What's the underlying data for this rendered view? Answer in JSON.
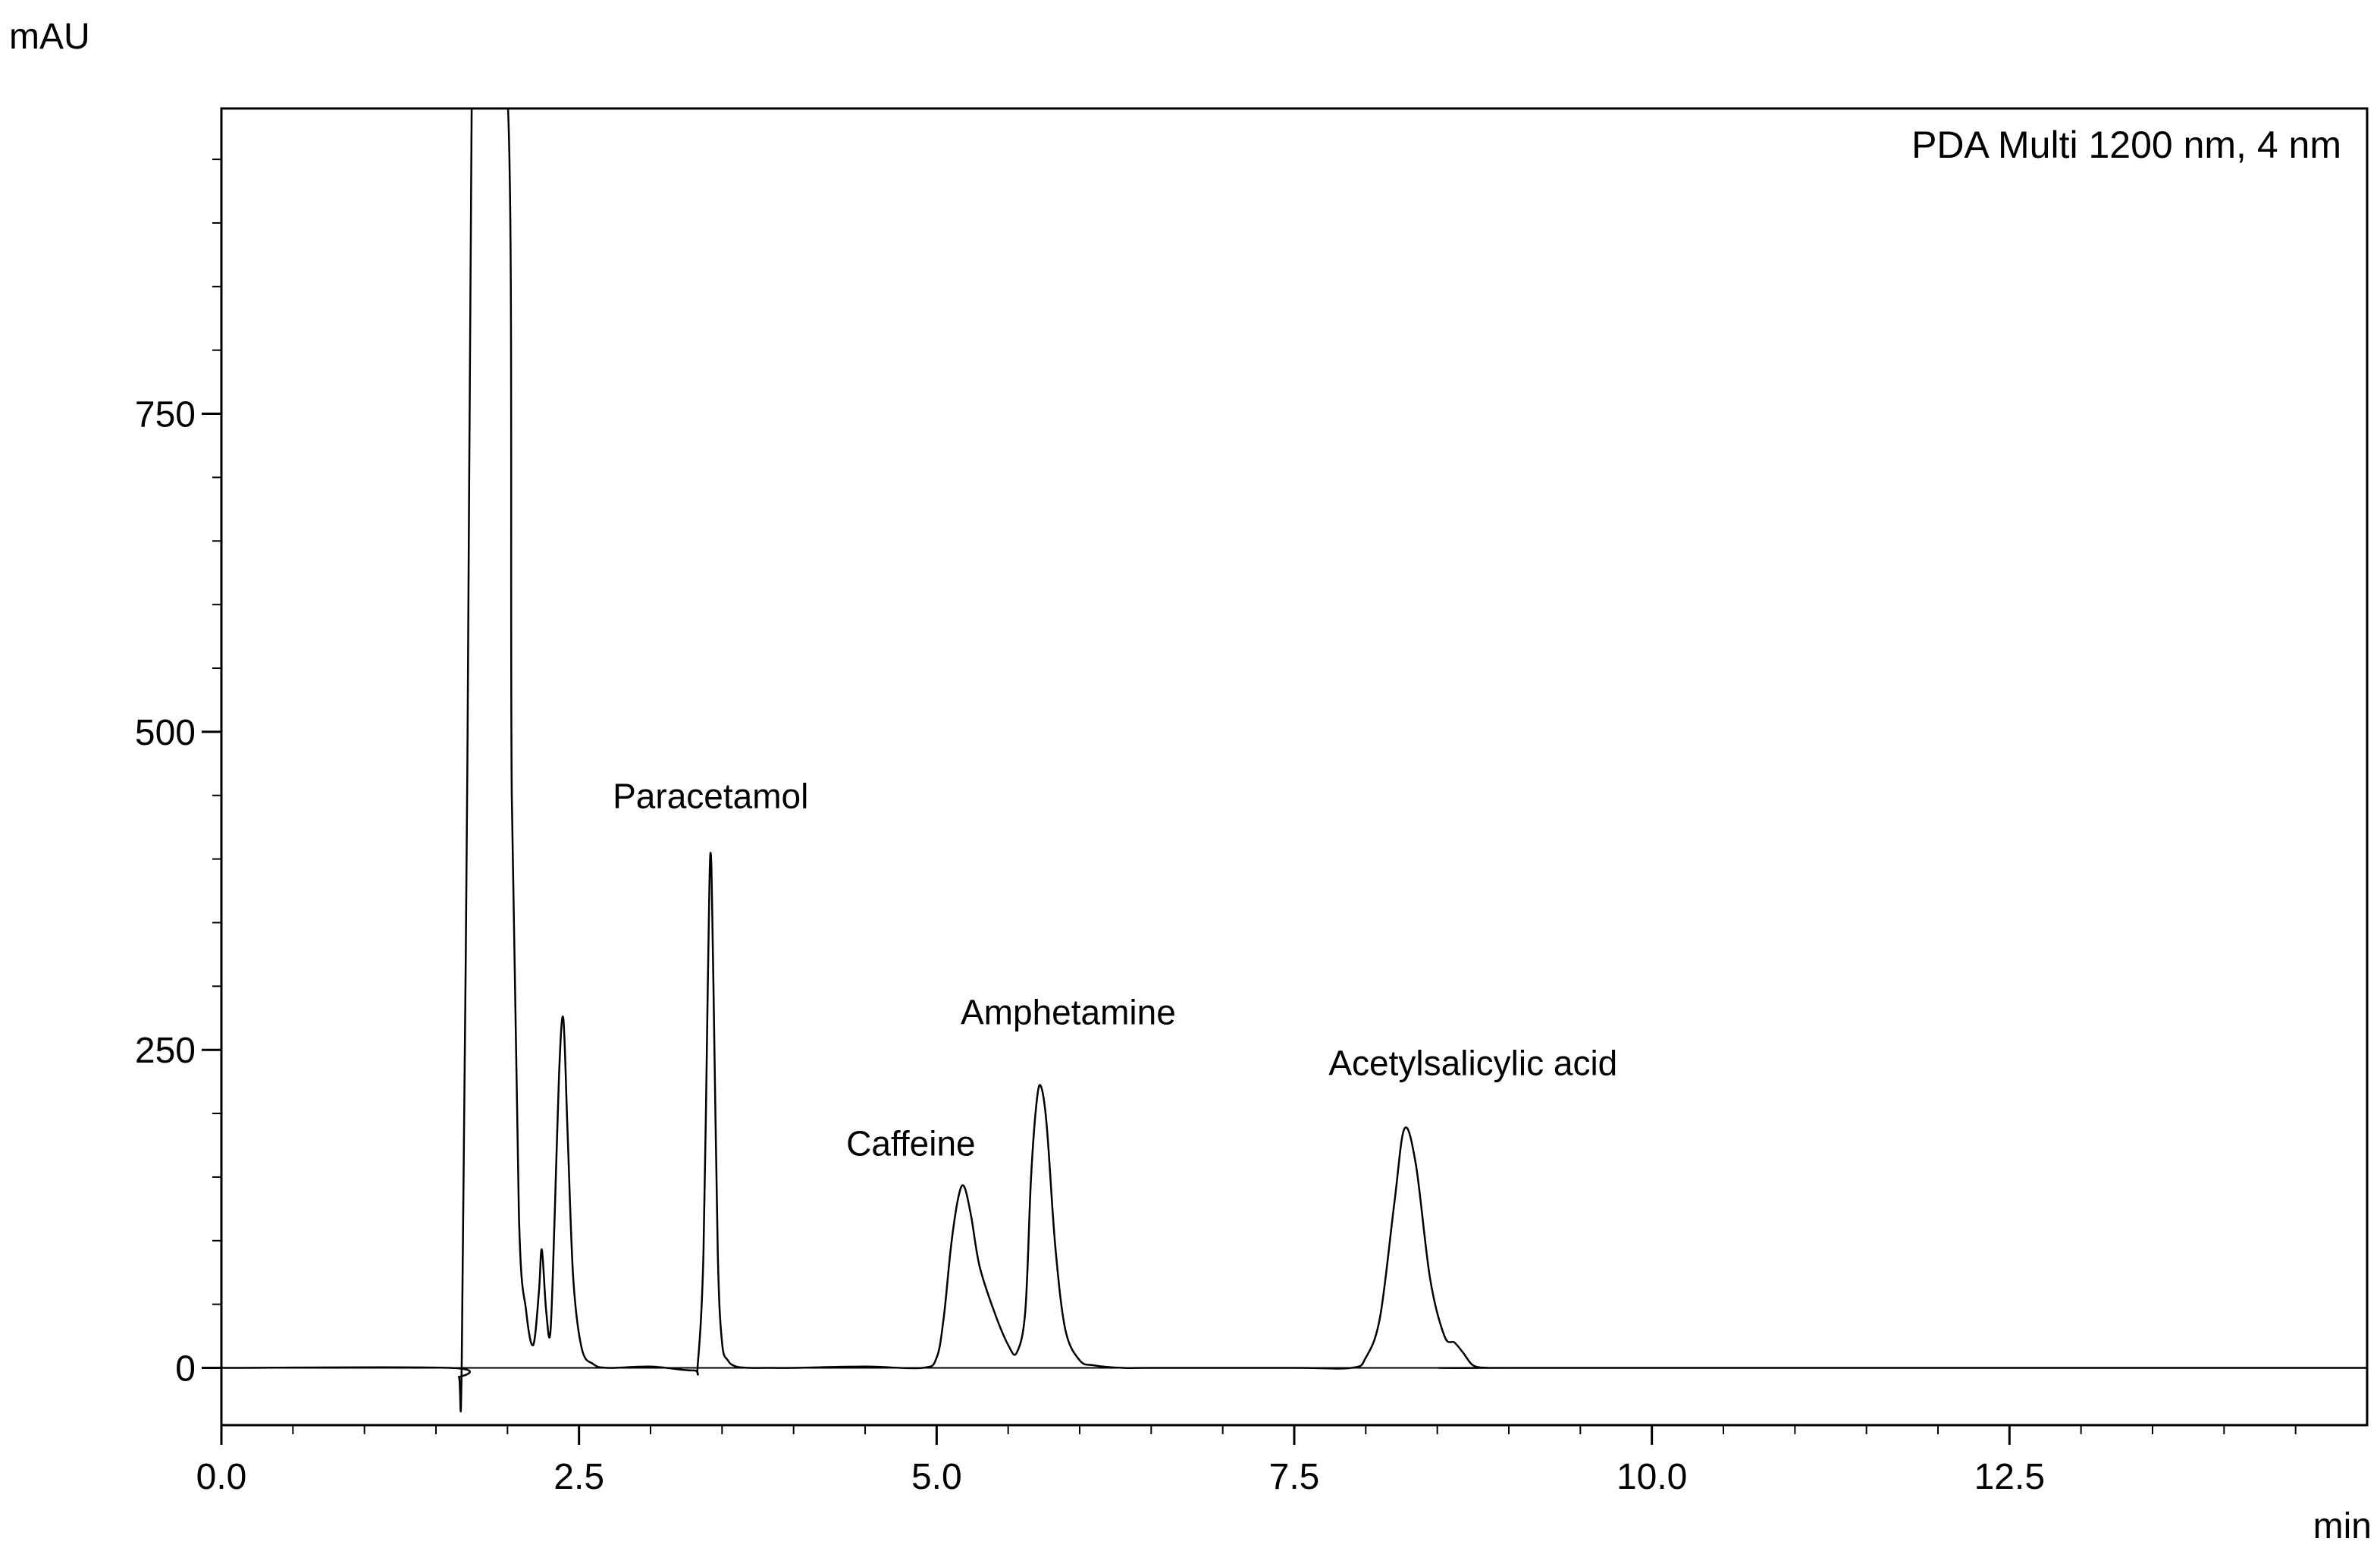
{
  "chart_data": {
    "type": "line",
    "title": "",
    "legend": "PDA Multi 1200 nm, 4 nm",
    "legend_position": "top-right",
    "xlabel": "min",
    "ylabel": "mAU",
    "xlim": [
      0,
      15
    ],
    "ylim": [
      -45,
      990
    ],
    "grid": false,
    "x_ticks": [
      {
        "value": 0.0,
        "label": "0.0"
      },
      {
        "value": 2.5,
        "label": "2.5"
      },
      {
        "value": 5.0,
        "label": "5.0"
      },
      {
        "value": 7.5,
        "label": "7.5"
      },
      {
        "value": 10.0,
        "label": "10.0"
      },
      {
        "value": 12.5,
        "label": "12.5"
      }
    ],
    "y_ticks": [
      {
        "value": 0,
        "label": "0"
      },
      {
        "value": 250,
        "label": "250"
      },
      {
        "value": 500,
        "label": "500"
      },
      {
        "value": 750,
        "label": "750"
      }
    ],
    "annotations": [
      {
        "text": "Paracetamol",
        "x": 3.42,
        "y": 440
      },
      {
        "text": "Caffeine",
        "x": 4.82,
        "y": 167
      },
      {
        "text": "Amphetamine",
        "x": 5.92,
        "y": 270
      },
      {
        "text": "Acetylsalicylic acid",
        "x": 8.75,
        "y": 230
      }
    ],
    "series": [
      {
        "name": "PDA Multi 1200 nm, 4 nm",
        "x": [
          0,
          1.6,
          1.66,
          1.68,
          1.72,
          1.75,
          1.78,
          2.0,
          2.03,
          2.08,
          2.13,
          2.18,
          2.22,
          2.24,
          2.27,
          2.3,
          2.33,
          2.36,
          2.39,
          2.42,
          2.46,
          2.52,
          2.6,
          2.7,
          3.0,
          3.3,
          3.33,
          3.37,
          3.4,
          3.42,
          3.44,
          3.47,
          3.5,
          3.54,
          3.6,
          3.7,
          3.8,
          4.0,
          4.5,
          4.9,
          5.0,
          5.05,
          5.1,
          5.15,
          5.19,
          5.24,
          5.3,
          5.4,
          5.5,
          5.56,
          5.62,
          5.66,
          5.7,
          5.73,
          5.77,
          5.83,
          5.9,
          6.0,
          6.1,
          6.3,
          6.5,
          7.5,
          7.9,
          8.0,
          8.1,
          8.2,
          8.27,
          8.35,
          8.45,
          8.55,
          8.62,
          8.68,
          8.75,
          8.85,
          9.0,
          15.0
        ],
        "y": [
          0,
          0,
          -7,
          5,
          480,
          1000,
          1000,
          1000,
          450,
          120,
          45,
          18,
          60,
          93,
          45,
          28,
          120,
          230,
          275,
          185,
          70,
          15,
          3,
          0,
          1,
          -2,
          3,
          90,
          300,
          405,
          300,
          90,
          20,
          6,
          1,
          0,
          0,
          0,
          1,
          0,
          8,
          40,
          95,
          133,
          143,
          120,
          80,
          45,
          18,
          12,
          45,
          150,
          210,
          221,
          190,
          95,
          30,
          6,
          2,
          0,
          0,
          0,
          0,
          8,
          40,
          130,
          188,
          160,
          70,
          25,
          20,
          12,
          2,
          0,
          0,
          0
        ]
      }
    ]
  }
}
